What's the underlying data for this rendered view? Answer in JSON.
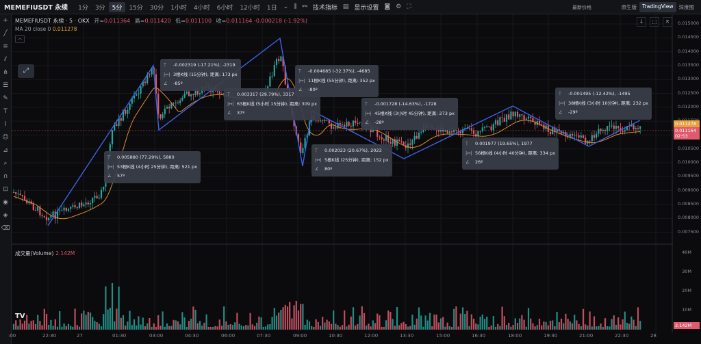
{
  "topbar": {
    "symbol": "MEMEFIUSDT 永续",
    "timeframes": [
      "1分",
      "3分",
      "5分",
      "15分",
      "30分",
      "1小时",
      "4小时",
      "6小时",
      "12小时",
      "1日"
    ],
    "active_timeframe": "5分",
    "indicators_label": "技术指标",
    "display_label": "显示设置",
    "latest_price_label": "最新价格",
    "view_tabs": [
      "原生版",
      "TradingView",
      "深度图"
    ],
    "active_view": "TradingView"
  },
  "legend": {
    "title": "MEMEFIUSDT 永续 · 5 · OKX",
    "open_label": "开=",
    "open": "0.011364",
    "high_label": "高=",
    "high": "0.011420",
    "low_label": "低=",
    "low": "0.011100",
    "close_label": "收=",
    "close": "0.011164",
    "change": "-0.000218 (-1.92%)",
    "ma_label": "MA 20 close 0",
    "ma_value": "0.011278"
  },
  "volume": {
    "label": "成交量(Volume)",
    "value": "2.142M",
    "axis": [
      "40M",
      "30M",
      "20M",
      "10M"
    ],
    "current_tag": "2.142M"
  },
  "price_axis": [
    "0.015000",
    "0.014500",
    "0.014000",
    "0.013500",
    "0.013000",
    "0.012500",
    "0.012000",
    "0.011500",
    "0.011000",
    "0.010500",
    "0.010000",
    "0.009500",
    "0.009000",
    "0.008500",
    "0.008000",
    "0.007500"
  ],
  "price_tags": {
    "ma": "0.011278",
    "price": "0.011164",
    "countdown": "02:53"
  },
  "time_axis": [
    ":00",
    "22:30",
    "27",
    "01:30",
    "03:00",
    "04:30",
    "06:00",
    "07:30",
    "09:00",
    "10:30",
    "12:00",
    "13:30",
    "15:00",
    "16:30",
    "18:00",
    "19:30",
    "21:00",
    "22:30",
    "28"
  ],
  "measurements": [
    {
      "id": "m1",
      "line1": "0.005880 (77.29%), 5880",
      "line2": "53根K线 (4小时 25分钟), 距离: 521 px",
      "line3": "57º"
    },
    {
      "id": "m2",
      "line1": "-0.002319 (-17.21%), -2319",
      "line2": "3根K线 (15分钟), 距离: 173 px",
      "line3": "-85º"
    },
    {
      "id": "m3",
      "line1": "0.003317 (29.79%), 3317",
      "line2": "63根K线 (5小时 15分钟), 距离: 309 px",
      "line3": "37º"
    },
    {
      "id": "m4",
      "line1": "-0.004685 (-32.37%), -4685",
      "line2": "11根K线 (55分钟), 距离: 352 px",
      "line3": "-80º"
    },
    {
      "id": "m5",
      "line1": "0.002023 (20.67%), 2023",
      "line2": "5根K线 (25分钟), 距离: 152 px",
      "line3": "80º"
    },
    {
      "id": "m6",
      "line1": "-0.001728 (-14.63%), -1728",
      "line2": "45根K线 (3小时 45分钟), 距离: 273 px",
      "line3": "-28º"
    },
    {
      "id": "m7",
      "line1": "0.001977 (19.65%), 1977",
      "line2": "56根K线 (4小时 40分钟), 距离: 334 px",
      "line3": "26º"
    },
    {
      "id": "m8",
      "line1": "-0.001495 (-12.42%), -1495",
      "line2": "38根K线 (3小时 10分钟), 距离: 232 px",
      "line3": "-29º"
    }
  ],
  "colors": {
    "up": "#26a69a",
    "down": "#e05a6e",
    "ma": "#e08a2c",
    "measure": "#3d63e6",
    "background": "#0b0b0d"
  }
}
